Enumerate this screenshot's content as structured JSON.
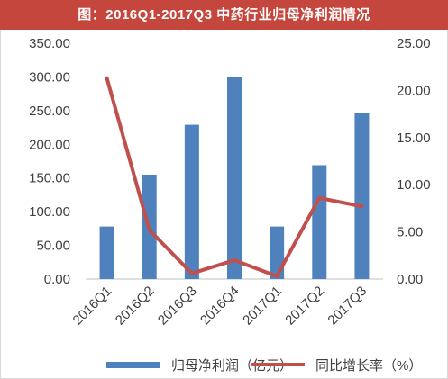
{
  "title": "图：2016Q1-2017Q3 中药行业归母净利润情况",
  "colors": {
    "title_bg": "#c5463c",
    "bar": "#4f81bd",
    "line": "#c0504d"
  },
  "chart_data": {
    "type": "bar",
    "title": "图：2016Q1-2017Q3 中药行业归母净利润情况",
    "categories": [
      "2016Q1",
      "2016Q2",
      "2016Q3",
      "2016Q4",
      "2017Q1",
      "2017Q2",
      "2017Q3"
    ],
    "series": [
      {
        "name": "归母净利润（亿元）",
        "type": "bar",
        "axis": "left",
        "values": [
          78,
          155,
          229,
          300,
          78,
          169,
          247
        ]
      },
      {
        "name": "同比增长率（%）",
        "type": "line",
        "axis": "right",
        "values": [
          21.3,
          5.2,
          0.6,
          2.0,
          0.3,
          8.6,
          7.7
        ]
      }
    ],
    "y_left": {
      "ylim": [
        0,
        350
      ],
      "ticks": [
        "0.00",
        "50.00",
        "100.00",
        "150.00",
        "200.00",
        "250.00",
        "300.00",
        "350.00"
      ]
    },
    "y_right": {
      "ylim": [
        0,
        25
      ],
      "ticks": [
        "0.00",
        "5.00",
        "10.00",
        "15.00",
        "20.00",
        "25.00"
      ]
    },
    "grid": false,
    "legend": "bottom"
  }
}
